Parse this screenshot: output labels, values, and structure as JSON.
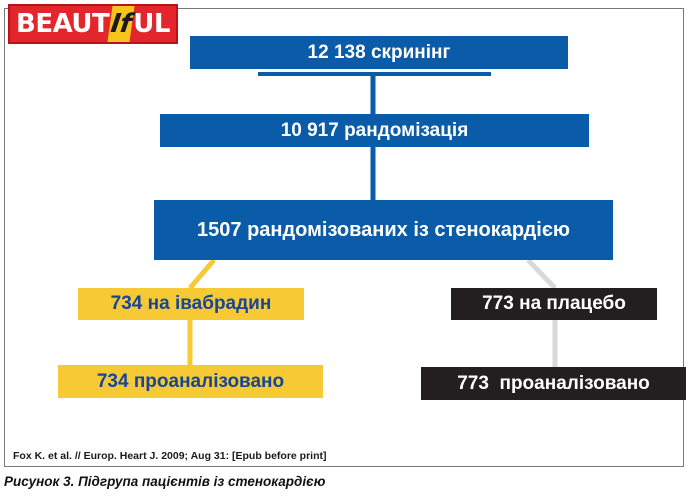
{
  "logo": {
    "part1": "BEAUT",
    "part2": "If",
    "part3": "UL"
  },
  "boxes": {
    "screening": "12 138 скринінг",
    "randomized": "10 917 рандомізація",
    "stenocardia": "1507 рандомізованих із стенокардією",
    "ivabradine": "734 на івабрадин",
    "ivabradine_analyzed": "734 проаналізовано",
    "placebo": "773 на плацебо",
    "placebo_analyzed": "773  проаналізовано"
  },
  "colors": {
    "blue": "#0a5ba8",
    "yellow": "#f6c935",
    "dark": "#231f20",
    "connector_blue": "#0a5ba8",
    "connector_yellow": "#f6c935",
    "connector_grey": "#d9d9d9",
    "logo_red": "#e3262c"
  },
  "source": "Fox K. et al. // Europ. Heart J. 2009; Aug 31: [Epub before print]",
  "caption": "Рисунок 3. Підгрупа пацієнтів із стенокардією"
}
